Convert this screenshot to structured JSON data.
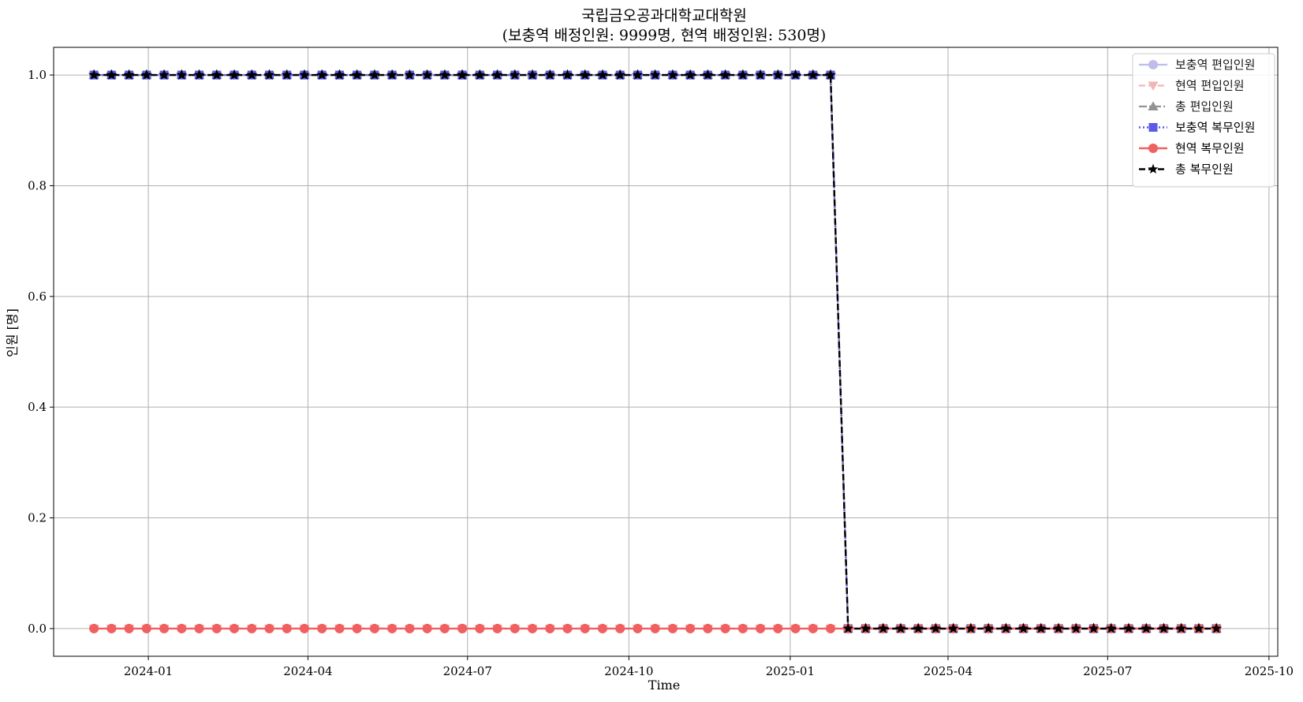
{
  "chart_data": {
    "type": "line",
    "title": "국립금오공과대학교대학원",
    "subtitle": "(보충역 배정인원: 9999명, 현역 배정인원: 530명)",
    "xlabel": "Time",
    "ylabel": "인원 [명]",
    "xlim": [
      "2023-11-08",
      "2025-10-06"
    ],
    "ylim": [
      -0.05,
      1.05
    ],
    "xticks": [
      "2024-01",
      "2024-04",
      "2024-07",
      "2024-10",
      "2025-01",
      "2025-04",
      "2025-07",
      "2025-10"
    ],
    "yticks": [
      "0.0",
      "0.2",
      "0.4",
      "0.6",
      "0.8",
      "1.0"
    ],
    "grid": true,
    "legend": "top-right",
    "x_start": "2023-12-01",
    "x_end": "2025-09-01",
    "x_step_days": 10,
    "extra_dates": [
      "2024-06-28"
    ],
    "drop_date": "2025-02-01",
    "series": [
      {
        "name": "보충역 편입인원",
        "color": "#b8b8ec",
        "dash": "",
        "marker": "circle",
        "width": 2.2,
        "value_before": 1,
        "value_after": 0,
        "opacity": 0.9
      },
      {
        "name": "현역 편입인원",
        "color": "#f0b0b0",
        "dash": "8,4",
        "marker": "triangle-down",
        "width": 2.2,
        "value_before": 0,
        "value_after": 0,
        "opacity": 0.9
      },
      {
        "name": "총 편입인원",
        "color": "#888888",
        "dash": "10,3,2,3",
        "marker": "triangle-up",
        "width": 2.2,
        "value_before": 1,
        "value_after": 0,
        "opacity": 0.9
      },
      {
        "name": "보충역 복무인원",
        "color": "#5a5ae6",
        "dash": "2,3",
        "marker": "square",
        "width": 2.4,
        "value_before": 1,
        "value_after": 0,
        "opacity": 1
      },
      {
        "name": "현역 복무인원",
        "color": "#f06060",
        "dash": "",
        "marker": "circle",
        "width": 2.4,
        "value_before": 0,
        "value_after": 0,
        "opacity": 1
      },
      {
        "name": "총 복무인원",
        "color": "#000000",
        "dash": "8,4",
        "marker": "star",
        "width": 2.4,
        "value_before": 1,
        "value_after": 0,
        "opacity": 1
      }
    ]
  }
}
